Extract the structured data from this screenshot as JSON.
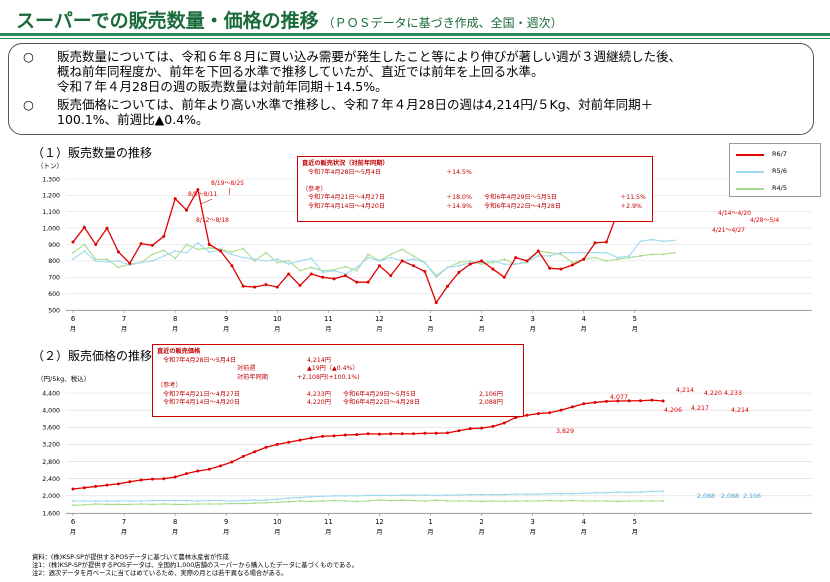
{
  "header": {
    "title": "スーパーでの販売数量・価格の推移",
    "subtitle": "（ＰＯＳデータに基づき作成、全国・週次）"
  },
  "summary": {
    "bullet": "○",
    "line1a": "販売数量については、令和６年８月に買い込み需要が発生したこと等により伸びが著しい週が３週継続した後、",
    "line1b": "概ね前年同程度か、前年を下回る水準で推移していたが、直近では前年を上回る水準。",
    "line1c": "令和７年４月28日の週の販売数量は対前年同期＋14.5%。",
    "line2a": "販売価格については、前年より高い水準で推移し、令和７年４月28日の週は4,214円/５Kg、対前年同期＋",
    "line2b": "100.1%、前週比▲0.4%。"
  },
  "colors": {
    "r6": "#e00000",
    "r5": "#9fd9f0",
    "r4": "#a8dc8c",
    "accent": "#1a6b3a"
  },
  "legend": {
    "r6": "R6/7",
    "r5": "R5/6",
    "r4": "R4/5"
  },
  "qty_box": {
    "h1": "直近の販売状況（対前年同期）",
    "r1a": "令和7年4月28日～5月4日",
    "r1b": "＋14.5%",
    "h2": "（参考）",
    "r2a": "令和7年4月21日～4月27日",
    "r2b": "＋18.0%",
    "r2c": "令和6年4月29日～5月5日",
    "r2d": "＋11.5%",
    "r3a": "令和7年4月14日～4月20日",
    "r3b": "＋14.9%",
    "r3c": "令和6年4月22日～4月28日",
    "r3d": "＋2.9%"
  },
  "price_box": {
    "h1": "直近の販売価格",
    "r1a": "令和7年4月28日～5月4日",
    "r1b": "4,214円",
    "r2a": "対前週",
    "r2b": "▲19円（▲0.4%）",
    "r3a": "対前年同期",
    "r3b": "+2,108円(+100.1%)",
    "h2": "（参考）",
    "r4a": "令和7年4月21日～4月27日",
    "r4b": "4,233円",
    "r4c": "令和6年4月29日～5月5日",
    "r4d": "2,106円",
    "r5a": "令和7年4月14日～4月20日",
    "r5b": "4,220円",
    "r5c": "令和6年4月22日～4月28日",
    "r5d": "2,088円"
  },
  "notes": {
    "n1": "資料：(株)KSP-SPが提供するPOSデータに基づいて農林水産省が作成",
    "n2": "注1：(株)KSP-SPが提供するPOSデータは、全国約1,000店舗のスーパーから購入したデータに基づくものである。",
    "n3": "注2：週次データを月ベースに当てはめているため、実際の月とは若干異なる場合がある。"
  },
  "chart_data": [
    {
      "type": "line",
      "title": "（１）販売数量の推移",
      "ylabel": "（トン）",
      "ylim": [
        500,
        1300
      ],
      "yticks": [
        500,
        600,
        700,
        800,
        900,
        1000,
        1100,
        1200,
        1300
      ],
      "month_labels": [
        "6",
        "7",
        "8",
        "9",
        "10",
        "11",
        "12",
        "1",
        "2",
        "3",
        "4",
        "5"
      ],
      "month_weeks": [
        0,
        4.5,
        9,
        13.5,
        18,
        22.5,
        27,
        31.5,
        36,
        40.5,
        45,
        49.5
      ],
      "month_suffix": "月",
      "series": [
        {
          "name": "R6/7",
          "values": [
            915,
            1005,
            900,
            1000,
            855,
            785,
            905,
            895,
            950,
            1180,
            1110,
            1235,
            900,
            860,
            770,
            645,
            640,
            655,
            640,
            720,
            650,
            720,
            700,
            690,
            710,
            670,
            670,
            770,
            710,
            800,
            770,
            735,
            545,
            645,
            730,
            780,
            800,
            750,
            700,
            820,
            800,
            860,
            755,
            750,
            775,
            810,
            910,
            915,
            1100,
            1045,
            1090
          ]
        },
        {
          "name": "R5/6",
          "values": [
            810,
            860,
            800,
            795,
            800,
            775,
            790,
            800,
            830,
            860,
            850,
            910,
            855,
            865,
            840,
            820,
            810,
            800,
            810,
            780,
            800,
            815,
            730,
            740,
            720,
            760,
            820,
            800,
            820,
            800,
            810,
            790,
            700,
            760,
            770,
            790,
            790,
            800,
            780,
            780,
            795,
            830,
            830,
            850,
            850,
            850,
            850,
            850,
            820,
            830,
            920,
            930,
            920,
            925
          ]
        },
        {
          "name": "R4/5",
          "values": [
            850,
            900,
            810,
            810,
            760,
            780,
            790,
            840,
            865,
            815,
            900,
            870,
            880,
            870,
            855,
            875,
            800,
            850,
            790,
            800,
            740,
            760,
            740,
            745,
            765,
            740,
            840,
            800,
            840,
            870,
            830,
            790,
            710,
            760,
            790,
            800,
            780,
            790,
            810,
            780,
            790,
            860,
            850,
            840,
            790,
            810,
            820,
            800,
            810,
            820,
            830,
            840,
            840,
            850
          ]
        }
      ],
      "annotations": [
        "8/5～8/11",
        "8/12～8/18",
        "8/19～8/25",
        "4/14～4/20",
        "4/21～4/27",
        "4/28～5/4"
      ]
    },
    {
      "type": "line",
      "title": "（２）販売価格の推移",
      "ylabel": "（円/5kg、税込）",
      "ylim": [
        1600,
        4400
      ],
      "yticks": [
        1600,
        2000,
        2400,
        2800,
        3200,
        3600,
        4000,
        4400
      ],
      "month_labels": [
        "6",
        "7",
        "8",
        "9",
        "10",
        "11",
        "12",
        "1",
        "2",
        "3",
        "4",
        "5"
      ],
      "month_weeks": [
        0,
        4.5,
        9,
        13.5,
        18,
        22.5,
        27,
        31.5,
        36,
        40.5,
        45,
        49.5
      ],
      "month_suffix": "月",
      "series": [
        {
          "name": "R6/7",
          "values": [
            2160,
            2190,
            2220,
            2250,
            2280,
            2330,
            2370,
            2390,
            2400,
            2440,
            2520,
            2580,
            2620,
            2700,
            2790,
            2920,
            3030,
            3130,
            3200,
            3250,
            3300,
            3350,
            3390,
            3400,
            3420,
            3430,
            3450,
            3440,
            3450,
            3450,
            3450,
            3460,
            3460,
            3470,
            3520,
            3570,
            3580,
            3620,
            3700,
            3829,
            3880,
            3920,
            3940,
            4000,
            4077,
            4150,
            4180,
            4206,
            4214,
            4217,
            4220,
            4233,
            4214
          ]
        },
        {
          "name": "R5/6",
          "values": [
            1880,
            1880,
            1880,
            1880,
            1880,
            1880,
            1880,
            1890,
            1890,
            1890,
            1890,
            1880,
            1890,
            1890,
            1880,
            1890,
            1900,
            1900,
            1920,
            1950,
            1960,
            1980,
            1990,
            2000,
            2000,
            2000,
            2010,
            2010,
            2010,
            2020,
            2020,
            2020,
            2010,
            2020,
            2020,
            2030,
            2030,
            2030,
            2030,
            2040,
            2040,
            2040,
            2050,
            2050,
            2050,
            2060,
            2070,
            2070,
            2088,
            2080,
            2088,
            2106,
            2110
          ]
        },
        {
          "name": "R4/5",
          "values": [
            1780,
            1790,
            1810,
            1800,
            1800,
            1800,
            1810,
            1800,
            1810,
            1800,
            1800,
            1810,
            1810,
            1810,
            1820,
            1820,
            1830,
            1840,
            1850,
            1860,
            1880,
            1870,
            1880,
            1890,
            1880,
            1870,
            1880,
            1900,
            1890,
            1900,
            1890,
            1880,
            1900,
            1880,
            1880,
            1880,
            1870,
            1880,
            1870,
            1880,
            1880,
            1880,
            1890,
            1880,
            1890,
            1880,
            1880,
            1880,
            1870,
            1880,
            1880,
            1880,
            1880
          ]
        }
      ],
      "labels_r6": [
        "3,829",
        "4,077",
        "4,214",
        "4,206",
        "4,217",
        "4,220",
        "4,233",
        "4,214"
      ],
      "labels_r5": [
        "2,088",
        "2,088",
        "2,106"
      ]
    }
  ]
}
